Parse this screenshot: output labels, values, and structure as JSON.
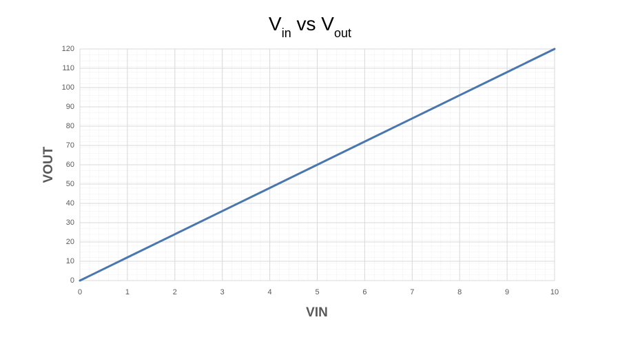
{
  "chart_data": {
    "type": "line",
    "title": [
      {
        "text": "V"
      },
      {
        "text": "in",
        "sub": true
      },
      {
        "text": " vs V"
      },
      {
        "text": "out",
        "sub": true
      }
    ],
    "x_label": "VIN",
    "y_label": "VOUT",
    "x": [
      0,
      1,
      2,
      3,
      4,
      5,
      6,
      7,
      8,
      9,
      10
    ],
    "series": [
      {
        "name": "VOUT",
        "color": "#4a76b0",
        "values": [
          0,
          12,
          24,
          36,
          48,
          60,
          72,
          84,
          96,
          108,
          120
        ]
      }
    ],
    "xlim": [
      0,
      10
    ],
    "xticks": [
      0,
      1,
      2,
      3,
      4,
      5,
      6,
      7,
      8,
      9,
      10
    ],
    "ylim": [
      0,
      120
    ],
    "yticks": [
      0,
      10,
      20,
      30,
      40,
      50,
      60,
      70,
      80,
      90,
      100,
      110,
      120
    ],
    "grid": true
  }
}
